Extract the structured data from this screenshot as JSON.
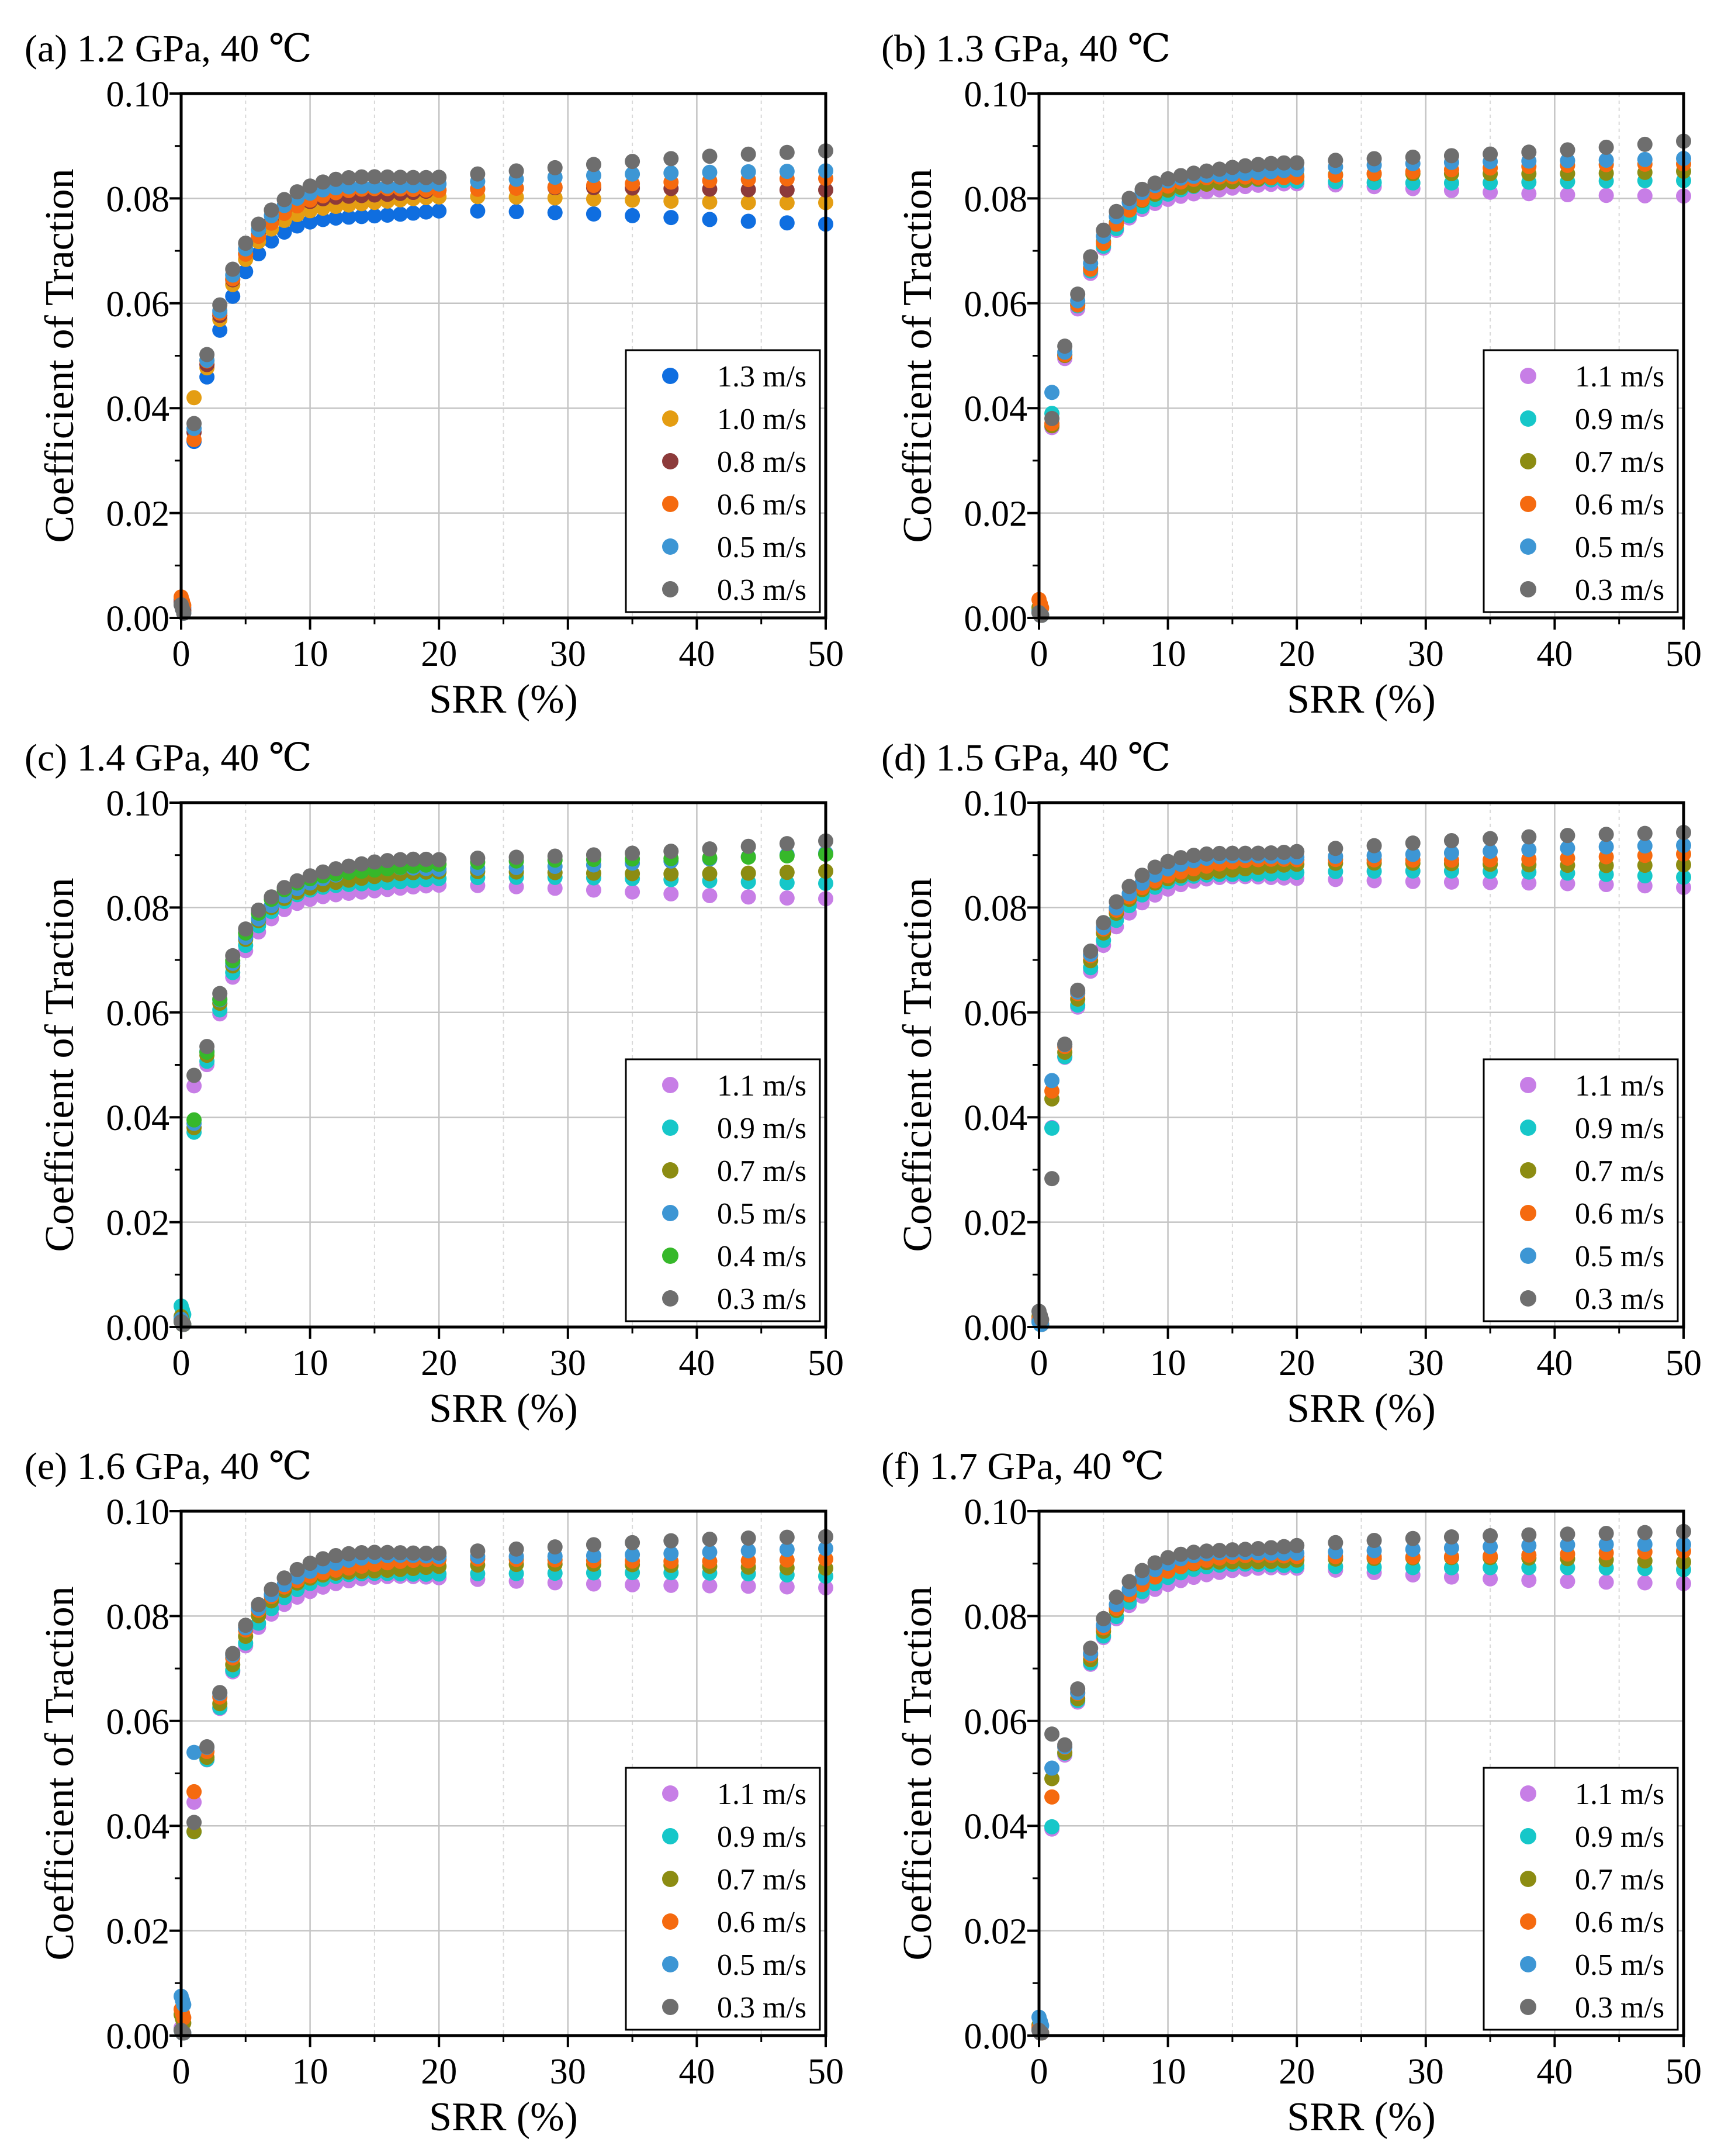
{
  "figure": {
    "background": "#ffffff",
    "colors": {
      "1.3 m/s": "#0f6ee0",
      "1.1 m/s": "#c77ee6",
      "1.0 m/s": "#e49d12",
      "0.9 m/s": "#16c7c9",
      "0.8 m/s": "#8c3a3a",
      "0.7 m/s": "#8c8c12",
      "0.6 m/s": "#f56a0f",
      "0.5 m/s": "#3d96d4",
      "0.4 m/s": "#36b82a",
      "0.3 m/s": "#6e6e6e"
    }
  },
  "chart_data": [
    {
      "type": "scatter",
      "title": "(a) 1.2 GPa, 40 ℃",
      "xlabel": "SRR (%)",
      "ylabel": "Coefficient of Traction",
      "xlim": [
        0,
        50
      ],
      "ylim": [
        0,
        0.1
      ],
      "xticks": [
        "0",
        "10",
        "20",
        "30",
        "40",
        "50"
      ],
      "yticks": [
        "0.00",
        "0.02",
        "0.04",
        "0.06",
        "0.08",
        "0.10"
      ],
      "grid": true,
      "legend_position": "bottom-right",
      "series": [
        {
          "name": "1.3 m/s",
          "plateau": 0.0775,
          "end": 0.0755,
          "low": 0.0035
        },
        {
          "name": "1.0 m/s",
          "plateau": 0.08,
          "end": 0.0795,
          "low": 0.003,
          "c1": 0.042
        },
        {
          "name": "0.8 m/s",
          "plateau": 0.0815,
          "end": 0.082,
          "low": 0.003
        },
        {
          "name": "0.6 m/s",
          "plateau": 0.082,
          "end": 0.0835,
          "low": 0.004,
          "c1": 0.034
        },
        {
          "name": "0.5 m/s",
          "plateau": 0.083,
          "end": 0.0855,
          "low": 0.0025
        },
        {
          "name": "0.3 m/s",
          "plateau": 0.0845,
          "end": 0.089,
          "low": 0.0025
        }
      ]
    },
    {
      "type": "scatter",
      "title": "(b) 1.3 GPa, 40 ℃",
      "xlabel": "SRR (%)",
      "ylabel": "Coefficient of Traction",
      "xlim": [
        0,
        50
      ],
      "ylim": [
        0,
        0.1
      ],
      "xticks": [
        "0",
        "10",
        "20",
        "30",
        "40",
        "50"
      ],
      "yticks": [
        "0.00",
        "0.02",
        "0.04",
        "0.06",
        "0.08",
        "0.10"
      ],
      "grid": true,
      "legend_position": "bottom-right",
      "series": [
        {
          "name": "1.1 m/s",
          "plateau": 0.0825,
          "end": 0.0805,
          "low": 0.0015
        },
        {
          "name": "0.9 m/s",
          "plateau": 0.0835,
          "end": 0.083,
          "low": 0.0015,
          "c1": 0.039
        },
        {
          "name": "0.7 m/s",
          "plateau": 0.084,
          "end": 0.0855,
          "low": 0.002
        },
        {
          "name": "0.6 m/s",
          "plateau": 0.0845,
          "end": 0.0865,
          "low": 0.0035
        },
        {
          "name": "0.5 m/s",
          "plateau": 0.0855,
          "end": 0.088,
          "low": 0.001,
          "c1": 0.043
        },
        {
          "name": "0.3 m/s",
          "plateau": 0.0865,
          "end": 0.091,
          "low": 0.001
        }
      ]
    },
    {
      "type": "scatter",
      "title": "(c) 1.4 GPa, 40 ℃",
      "xlabel": "SRR (%)",
      "ylabel": "Coefficient of Traction",
      "xlim": [
        0,
        50
      ],
      "ylim": [
        0,
        0.1
      ],
      "xticks": [
        "0",
        "10",
        "20",
        "30",
        "40",
        "50"
      ],
      "yticks": [
        "0.00",
        "0.02",
        "0.04",
        "0.06",
        "0.08",
        "0.10"
      ],
      "grid": true,
      "legend_position": "bottom-right",
      "series": [
        {
          "name": "1.1 m/s",
          "plateau": 0.084,
          "end": 0.082,
          "low": 0.0015,
          "c1": 0.046
        },
        {
          "name": "0.9 m/s",
          "plateau": 0.0855,
          "end": 0.085,
          "low": 0.004
        },
        {
          "name": "0.7 m/s",
          "plateau": 0.0865,
          "end": 0.087,
          "low": 0.002
        },
        {
          "name": "0.5 m/s",
          "plateau": 0.0875,
          "end": 0.09,
          "low": 0.0015
        },
        {
          "name": "0.4 m/s",
          "plateau": 0.088,
          "end": 0.0905,
          "low": 0.001,
          "c1": 0.0395
        },
        {
          "name": "0.3 m/s",
          "plateau": 0.089,
          "end": 0.0925,
          "low": 0.001,
          "c1": 0.048
        }
      ]
    },
    {
      "type": "scatter",
      "title": "(d) 1.5 GPa, 40 ℃",
      "xlabel": "SRR (%)",
      "ylabel": "Coefficient of Traction",
      "xlim": [
        0,
        50
      ],
      "ylim": [
        0,
        0.1
      ],
      "xticks": [
        "0",
        "10",
        "20",
        "30",
        "40",
        "50"
      ],
      "yticks": [
        "0.00",
        "0.02",
        "0.04",
        "0.06",
        "0.08",
        "0.10"
      ],
      "grid": true,
      "legend_position": "bottom-right",
      "series": [
        {
          "name": "1.1 m/s",
          "plateau": 0.086,
          "end": 0.0835,
          "low": 0.0015
        },
        {
          "name": "0.9 m/s",
          "plateau": 0.087,
          "end": 0.086,
          "low": 0.001
        },
        {
          "name": "0.7 m/s",
          "plateau": 0.088,
          "end": 0.0885,
          "low": 0.002,
          "c1": 0.0435
        },
        {
          "name": "0.6 m/s",
          "plateau": 0.089,
          "end": 0.09,
          "low": 0.0015,
          "c1": 0.045
        },
        {
          "name": "0.5 m/s",
          "plateau": 0.09,
          "end": 0.0915,
          "low": 0.001,
          "c1": 0.047
        },
        {
          "name": "0.3 m/s",
          "plateau": 0.091,
          "end": 0.0945,
          "low": 0.003,
          "c1": 0.0283
        }
      ]
    },
    {
      "type": "scatter",
      "title": "(e) 1.6 GPa, 40 ℃",
      "xlabel": "SRR (%)",
      "ylabel": "Coefficient of Traction",
      "xlim": [
        0,
        50
      ],
      "ylim": [
        0,
        0.1
      ],
      "xticks": [
        "0",
        "10",
        "20",
        "30",
        "40",
        "50"
      ],
      "yticks": [
        "0.00",
        "0.02",
        "0.04",
        "0.06",
        "0.08",
        "0.10"
      ],
      "grid": true,
      "legend_position": "bottom-right",
      "series": [
        {
          "name": "1.1 m/s",
          "plateau": 0.0875,
          "end": 0.085,
          "low": 0.0015,
          "c1": 0.0445
        },
        {
          "name": "0.9 m/s",
          "plateau": 0.0885,
          "end": 0.0875,
          "low": 0.001
        },
        {
          "name": "0.7 m/s",
          "plateau": 0.0895,
          "end": 0.0895,
          "low": 0.004
        },
        {
          "name": "0.6 m/s",
          "plateau": 0.0905,
          "end": 0.091,
          "low": 0.005,
          "c1": 0.0465
        },
        {
          "name": "0.5 m/s",
          "plateau": 0.0915,
          "end": 0.0925,
          "low": 0.0075,
          "c1": 0.054
        },
        {
          "name": "0.3 m/s",
          "plateau": 0.0925,
          "end": 0.095,
          "low": 0.001
        }
      ]
    },
    {
      "type": "scatter",
      "title": "(f) 1.7 GPa, 40 ℃",
      "xlabel": "SRR (%)",
      "ylabel": "Coefficient of Traction",
      "xlim": [
        0,
        50
      ],
      "ylim": [
        0,
        0.1
      ],
      "xticks": [
        "0",
        "10",
        "20",
        "30",
        "40",
        "50"
      ],
      "yticks": [
        "0.00",
        "0.02",
        "0.04",
        "0.06",
        "0.08",
        "0.10"
      ],
      "grid": true,
      "legend_position": "bottom-right",
      "series": [
        {
          "name": "1.1 m/s",
          "plateau": 0.089,
          "end": 0.086,
          "low": 0.001
        },
        {
          "name": "0.9 m/s",
          "plateau": 0.09,
          "end": 0.0885,
          "low": 0.0015
        },
        {
          "name": "0.7 m/s",
          "plateau": 0.091,
          "end": 0.0905,
          "low": 0.002,
          "c1": 0.049
        },
        {
          "name": "0.6 m/s",
          "plateau": 0.0915,
          "end": 0.092,
          "low": 0.0015,
          "c1": 0.0455
        },
        {
          "name": "0.5 m/s",
          "plateau": 0.0925,
          "end": 0.0935,
          "low": 0.0035,
          "c1": 0.051
        },
        {
          "name": "0.3 m/s",
          "plateau": 0.0935,
          "end": 0.0965,
          "low": 0.001,
          "c1": 0.0575
        }
      ]
    }
  ]
}
